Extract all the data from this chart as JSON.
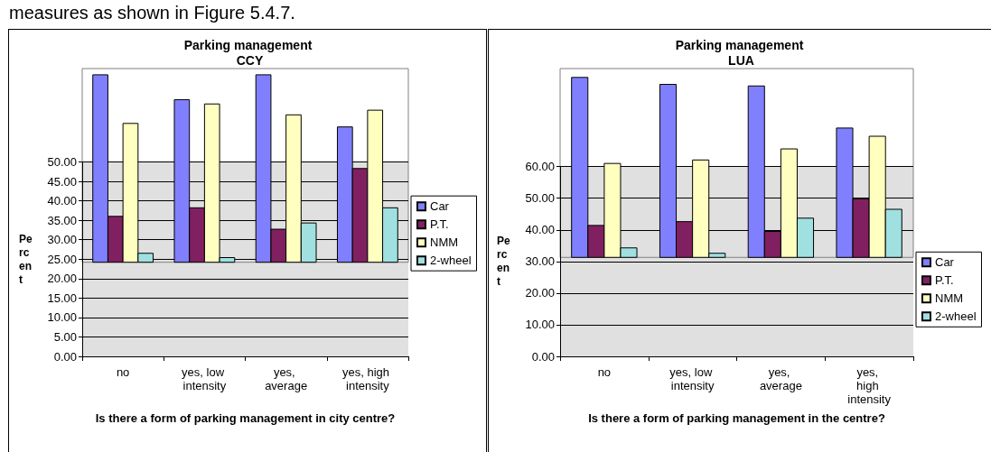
{
  "chart_data": [
    {
      "type": "bar",
      "title": "Parking management CCY",
      "categories": [
        "no",
        "yes, low intensity",
        "yes, average",
        "yes, high intensity"
      ],
      "series": [
        {
          "name": "Car",
          "color": "#8080ff",
          "values": [
            48.2,
            41.8,
            48.2,
            34.8
          ],
          "base": [
            24.2,
            24.2,
            24.2,
            24.2
          ]
        },
        {
          "name": "P.T.",
          "color": "#802060",
          "values": [
            11.8,
            14.0,
            8.5,
            24.1
          ],
          "base": [
            24.2,
            24.2,
            24.2,
            24.2
          ]
        },
        {
          "name": "NMM",
          "color": "#ffffc0",
          "values": [
            35.7,
            40.7,
            37.9,
            39.1
          ],
          "base": [
            24.2,
            24.2,
            24.2,
            24.2
          ]
        },
        {
          "name": "2-wheel",
          "color": "#a0e0e0",
          "values": [
            2.3,
            1.2,
            10.1,
            14.0
          ],
          "base": [
            24.2,
            24.2,
            24.2,
            24.2
          ]
        }
      ],
      "xlabel": "Is there a form of parking management in city centre?",
      "ylabel": "Percent",
      "ylim": [
        0,
        74
      ],
      "yticks": [
        {
          "value": 0,
          "label": "0.00"
        },
        {
          "value": 5,
          "label": "5.00"
        },
        {
          "value": 10,
          "label": "10.00"
        },
        {
          "value": 15,
          "label": "15.00"
        },
        {
          "value": 20,
          "label": "20.00"
        },
        {
          "value": 25,
          "label": "25.00"
        },
        {
          "value": 30,
          "label": "30.00"
        },
        {
          "value": 35,
          "label": "35.00"
        },
        {
          "value": 40,
          "label": "40.00"
        },
        {
          "value": 45,
          "label": "45.00"
        },
        {
          "value": 50,
          "label": "50.00"
        }
      ],
      "bands": [
        {
          "axis": "y",
          "from": 0,
          "to": 50,
          "color": "#e0e0e0"
        }
      ],
      "grid": "y",
      "legend": "right",
      "annotations": [
        "measures as shown in Figure 5.4.7."
      ]
    },
    {
      "type": "bar",
      "title": "Parking management LUA",
      "categories": [
        "no",
        "yes, low intensity",
        "yes, average",
        "yes, high intensity"
      ],
      "series": [
        {
          "name": "Car",
          "color": "#8080ff",
          "values": [
            56.9,
            54.7,
            54.2,
            40.9
          ],
          "base": [
            31.3,
            31.3,
            31.3,
            31.3
          ]
        },
        {
          "name": "P.T.",
          "color": "#802060",
          "values": [
            10.1,
            11.3,
            8.2,
            18.5
          ],
          "base": [
            31.3,
            31.3,
            31.3,
            31.3
          ]
        },
        {
          "name": "NMM",
          "color": "#ffffc0",
          "values": [
            29.7,
            30.8,
            34.3,
            38.3
          ],
          "base": [
            31.3,
            31.3,
            31.3,
            31.3
          ]
        },
        {
          "name": "2-wheel",
          "color": "#a0e0e0",
          "values": [
            3.0,
            1.3,
            12.4,
            15.2
          ],
          "base": [
            31.3,
            31.3,
            31.3,
            31.3
          ]
        }
      ],
      "xlabel": "Is there a form of parking management in the centre?",
      "ylabel": "Percent",
      "ylim": [
        0,
        91
      ],
      "yticks": [
        {
          "value": 0,
          "label": "0.00"
        },
        {
          "value": 10,
          "label": "10.00"
        },
        {
          "value": 20,
          "label": "20.00"
        },
        {
          "value": 30,
          "label": "30.00"
        },
        {
          "value": 40,
          "label": "40.00"
        },
        {
          "value": 50,
          "label": "50.00"
        },
        {
          "value": 60,
          "label": "60.00"
        }
      ],
      "bands": [
        {
          "axis": "y",
          "from": 0,
          "to": 60,
          "color": "#e0e0e0"
        }
      ],
      "grid": "y",
      "legend": "right"
    }
  ]
}
